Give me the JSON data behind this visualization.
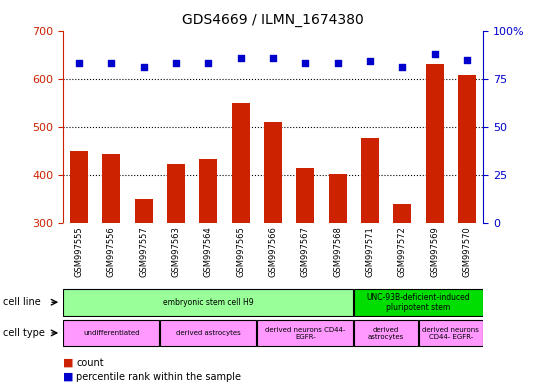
{
  "title": "GDS4669 / ILMN_1674380",
  "samples": [
    "GSM997555",
    "GSM997556",
    "GSM997557",
    "GSM997563",
    "GSM997564",
    "GSM997565",
    "GSM997566",
    "GSM997567",
    "GSM997568",
    "GSM997571",
    "GSM997572",
    "GSM997569",
    "GSM997570"
  ],
  "counts": [
    450,
    443,
    350,
    423,
    432,
    550,
    510,
    415,
    402,
    477,
    340,
    630,
    607
  ],
  "percentiles": [
    83,
    83,
    81,
    83,
    83,
    86,
    86,
    83,
    83,
    84,
    81,
    88,
    85
  ],
  "ylim_left": [
    300,
    700
  ],
  "ylim_right": [
    0,
    100
  ],
  "yticks_left": [
    300,
    400,
    500,
    600,
    700
  ],
  "yticks_right": [
    0,
    25,
    50,
    75,
    100
  ],
  "bar_color": "#cc2200",
  "dot_color": "#0000cc",
  "bar_bottom": 300,
  "grid_lines": [
    400,
    500,
    600
  ],
  "cell_line_groups": [
    {
      "label": "embryonic stem cell H9",
      "start": 0,
      "end": 9,
      "color": "#99ff99"
    },
    {
      "label": "UNC-93B-deficient-induced\npluripotent stem",
      "start": 9,
      "end": 13,
      "color": "#00dd00"
    }
  ],
  "cell_type_groups": [
    {
      "label": "undifferentiated",
      "start": 0,
      "end": 3,
      "color": "#ff99ff"
    },
    {
      "label": "derived astrocytes",
      "start": 3,
      "end": 6,
      "color": "#ff99ff"
    },
    {
      "label": "derived neurons CD44-\nEGFR-",
      "start": 6,
      "end": 9,
      "color": "#ff99ff"
    },
    {
      "label": "derived\nastrocytes",
      "start": 9,
      "end": 11,
      "color": "#ff99ff"
    },
    {
      "label": "derived neurons\nCD44- EGFR-",
      "start": 11,
      "end": 13,
      "color": "#ff99ff"
    }
  ],
  "left_axis_color": "#cc2200",
  "right_axis_color": "#0000cc",
  "sample_bg_color": "#cccccc",
  "legend_items": [
    {
      "color": "#cc2200",
      "label": "count"
    },
    {
      "color": "#0000cc",
      "label": "percentile rank within the sample"
    }
  ]
}
